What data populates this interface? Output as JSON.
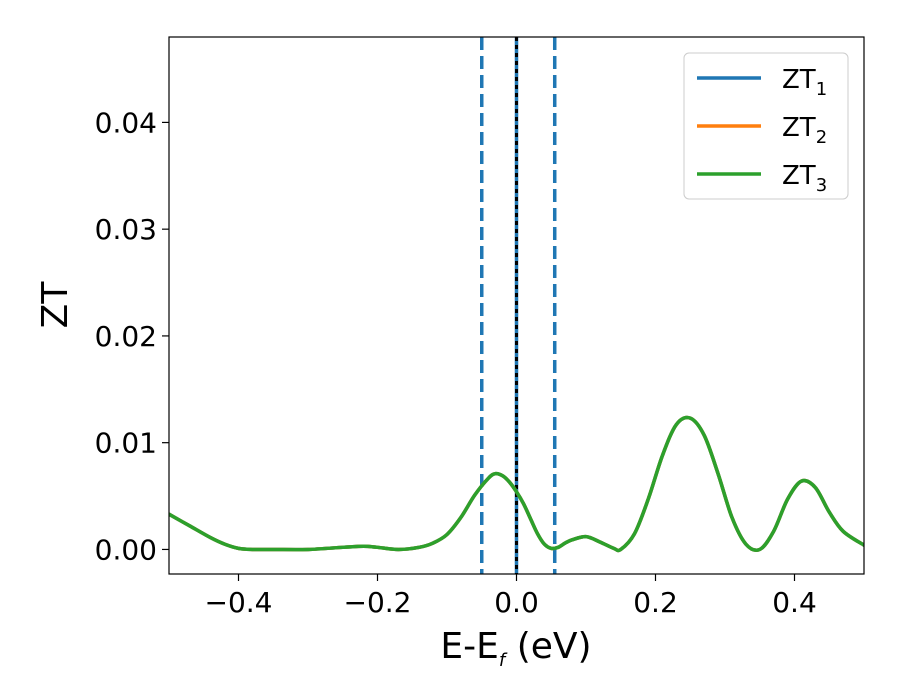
{
  "chart_data": {
    "type": "line",
    "xlabel": "E-E",
    "xlabel_sub": "f",
    "xlabel_unit": " (eV)",
    "ylabel": "ZT",
    "xlim": [
      -0.5,
      0.5
    ],
    "ylim": [
      -0.0023,
      0.048
    ],
    "xticks": [
      {
        "value": -0.4,
        "label": "−0.4"
      },
      {
        "value": -0.2,
        "label": "−0.2"
      },
      {
        "value": 0.0,
        "label": "0.0"
      },
      {
        "value": 0.2,
        "label": "0.2"
      },
      {
        "value": 0.4,
        "label": "0.4"
      }
    ],
    "yticks": [
      {
        "value": 0.0,
        "label": "0.00"
      },
      {
        "value": 0.01,
        "label": "0.01"
      },
      {
        "value": 0.02,
        "label": "0.02"
      },
      {
        "value": 0.03,
        "label": "0.03"
      },
      {
        "value": 0.04,
        "label": "0.04"
      }
    ],
    "grid": false,
    "legend_position": "top-right",
    "vlines": [
      {
        "x": -0.05,
        "style": "dashed",
        "color": "#1f77b4"
      },
      {
        "x": 0.055,
        "style": "dashed",
        "color": "#1f77b4"
      },
      {
        "x": 0.0,
        "style": "solid",
        "color": "#1f77b4"
      },
      {
        "x": 0.0,
        "style": "dotted",
        "color": "#000000"
      }
    ],
    "x": [
      -0.5,
      -0.47,
      -0.44,
      -0.42,
      -0.4,
      -0.38,
      -0.35,
      -0.3,
      -0.25,
      -0.22,
      -0.2,
      -0.17,
      -0.14,
      -0.12,
      -0.1,
      -0.08,
      -0.06,
      -0.04,
      -0.03,
      -0.02,
      -0.01,
      0.0,
      0.01,
      0.02,
      0.03,
      0.04,
      0.05,
      0.06,
      0.07,
      0.08,
      0.1,
      0.12,
      0.14,
      0.15,
      0.17,
      0.19,
      0.21,
      0.23,
      0.25,
      0.27,
      0.29,
      0.31,
      0.33,
      0.35,
      0.37,
      0.39,
      0.41,
      0.43,
      0.45,
      0.47,
      0.5
    ],
    "series": [
      {
        "name": "ZT",
        "name_sub": "1",
        "color": "#1f77b4",
        "values": [
          0.0033,
          0.0022,
          0.0011,
          0.0005,
          0.0001,
          0.0,
          0.0,
          0.0,
          0.0002,
          0.0003,
          0.0002,
          0.0,
          0.0002,
          0.0006,
          0.0014,
          0.003,
          0.0051,
          0.0067,
          0.0071,
          0.0069,
          0.0063,
          0.0054,
          0.0043,
          0.0029,
          0.0015,
          0.0005,
          0.0001,
          0.0002,
          0.0006,
          0.0009,
          0.0012,
          0.0007,
          0.0001,
          0.0,
          0.0015,
          0.0048,
          0.0088,
          0.0117,
          0.0123,
          0.0107,
          0.0071,
          0.003,
          0.0005,
          0.0,
          0.0017,
          0.0047,
          0.0064,
          0.0058,
          0.0035,
          0.0017,
          0.0004
        ]
      },
      {
        "name": "ZT",
        "name_sub": "2",
        "color": "#ff7f0e",
        "values": [
          0.0033,
          0.0022,
          0.0011,
          0.0005,
          0.0001,
          0.0,
          0.0,
          0.0,
          0.0002,
          0.0003,
          0.0002,
          0.0,
          0.0002,
          0.0006,
          0.0014,
          0.003,
          0.0051,
          0.0067,
          0.0071,
          0.0069,
          0.0063,
          0.0054,
          0.0043,
          0.0029,
          0.0015,
          0.0005,
          0.0001,
          0.0002,
          0.0006,
          0.0009,
          0.0012,
          0.0007,
          0.0001,
          0.0,
          0.0015,
          0.0048,
          0.0088,
          0.0117,
          0.0123,
          0.0107,
          0.0071,
          0.003,
          0.0005,
          0.0,
          0.0017,
          0.0047,
          0.0064,
          0.0058,
          0.0035,
          0.0017,
          0.0004
        ]
      },
      {
        "name": "ZT",
        "name_sub": "3",
        "color": "#2ca02c",
        "values": [
          0.0033,
          0.0022,
          0.0011,
          0.0005,
          0.0001,
          0.0,
          0.0,
          0.0,
          0.0002,
          0.0003,
          0.0002,
          0.0,
          0.0002,
          0.0006,
          0.0014,
          0.003,
          0.0051,
          0.0067,
          0.0071,
          0.0069,
          0.0063,
          0.0054,
          0.0043,
          0.0029,
          0.0015,
          0.0005,
          0.0001,
          0.0002,
          0.0006,
          0.0009,
          0.0012,
          0.0007,
          0.0001,
          0.0,
          0.0015,
          0.0048,
          0.0088,
          0.0117,
          0.0123,
          0.0107,
          0.0071,
          0.003,
          0.0005,
          0.0,
          0.0017,
          0.0047,
          0.0064,
          0.0058,
          0.0035,
          0.0017,
          0.0004
        ]
      }
    ]
  }
}
